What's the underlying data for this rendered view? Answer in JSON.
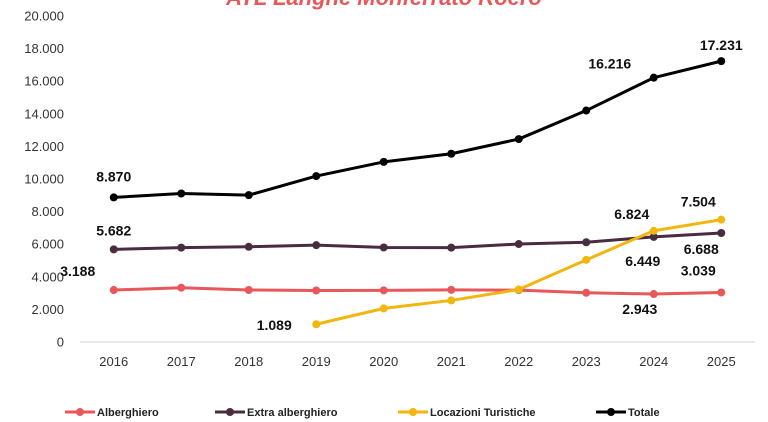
{
  "chart_data": {
    "type": "line",
    "title": "ATL Langhe Monferrato Roero",
    "x": [
      "2016",
      "2017",
      "2018",
      "2019",
      "2020",
      "2021",
      "2022",
      "2023",
      "2024",
      "2025"
    ],
    "ylim": [
      0,
      20000
    ],
    "yticks": [
      "0",
      "2.000",
      "4.000",
      "6.000",
      "8.000",
      "10.000",
      "12.000",
      "14.000",
      "16.000",
      "18.000",
      "20.000"
    ],
    "grid": false,
    "legend_position": "bottom",
    "title_color": "#E8575A",
    "series": [
      {
        "name": "Alberghiero",
        "color": "#E8575A",
        "values": [
          3188,
          3330,
          3190,
          3160,
          3170,
          3200,
          3180,
          3020,
          2943,
          3039
        ]
      },
      {
        "name": "Extra alberghiero",
        "color": "#4A2C40",
        "values": [
          5682,
          5790,
          5840,
          5940,
          5800,
          5790,
          6010,
          6120,
          6449,
          6688
        ]
      },
      {
        "name": "Locazioni Turistiche",
        "color": "#F2B60F",
        "values": [
          null,
          null,
          null,
          1089,
          2060,
          2550,
          3220,
          5040,
          6824,
          7504
        ]
      },
      {
        "name": "Totale",
        "color": "#000000",
        "values": [
          8870,
          9110,
          9010,
          10180,
          11050,
          11550,
          12450,
          14200,
          16216,
          17231
        ]
      }
    ],
    "annotations": [
      {
        "series": 3,
        "index": 0,
        "text": "8.870"
      },
      {
        "series": 3,
        "index": 8,
        "text": "16.216"
      },
      {
        "series": 3,
        "index": 9,
        "text": "17.231"
      },
      {
        "series": 1,
        "index": 0,
        "text": "5.682"
      },
      {
        "series": 1,
        "index": 8,
        "text": "6.449"
      },
      {
        "series": 1,
        "index": 9,
        "text": "6.688"
      },
      {
        "series": 0,
        "index": 0,
        "text": "3.188"
      },
      {
        "series": 0,
        "index": 8,
        "text": "2.943"
      },
      {
        "series": 0,
        "index": 9,
        "text": "3.039"
      },
      {
        "series": 2,
        "index": 3,
        "text": "1.089"
      },
      {
        "series": 2,
        "index": 8,
        "text": "6.824"
      },
      {
        "series": 2,
        "index": 9,
        "text": "7.504"
      }
    ]
  }
}
